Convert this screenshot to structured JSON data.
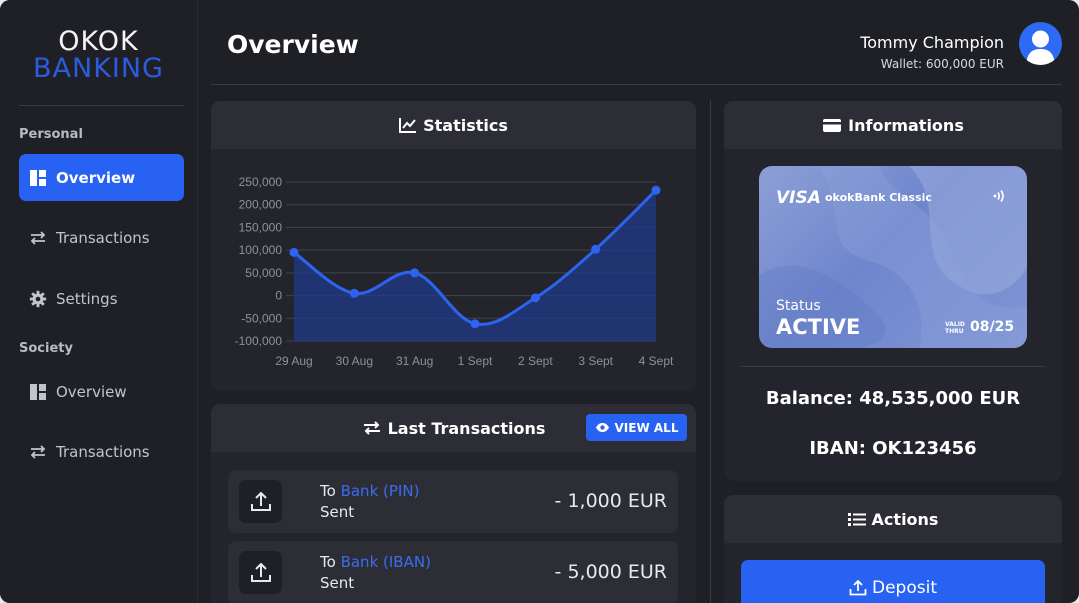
{
  "brand": {
    "line1": "OKOK",
    "line2": "BANKING"
  },
  "sidebar": {
    "personal_label": "Personal",
    "society_label": "Society",
    "personal_items": [
      {
        "label": "Overview",
        "icon": "dashboard-icon",
        "active": true
      },
      {
        "label": "Transactions",
        "icon": "transfer-icon",
        "active": false
      },
      {
        "label": "Settings",
        "icon": "gear-icon",
        "active": false
      }
    ],
    "society_items": [
      {
        "label": "Overview",
        "icon": "dashboard-icon",
        "active": false
      },
      {
        "label": "Transactions",
        "icon": "transfer-icon",
        "active": false
      }
    ]
  },
  "header": {
    "title": "Overview",
    "user_name": "Tommy Champion",
    "wallet": "Wallet: 600,000 EUR"
  },
  "statistics": {
    "title": "Statistics",
    "chart_data": {
      "type": "area",
      "categories": [
        "29 Aug",
        "30 Aug",
        "31 Aug",
        "1 Sept",
        "2 Sept",
        "3 Sept",
        "4 Sept"
      ],
      "values": [
        95000,
        5000,
        50000,
        -62000,
        -5000,
        102000,
        232000
      ],
      "ylim": [
        -100000,
        250000
      ],
      "yticks": [
        "250,000",
        "200,000",
        "150,000",
        "100,000",
        "50,000",
        "0",
        "-50,000",
        "-100,000"
      ],
      "title": "",
      "xlabel": "",
      "ylabel": "",
      "grid": true,
      "line_color": "#2d63f0",
      "fill_color": "#1f3a8a"
    }
  },
  "transactions": {
    "title": "Last Transactions",
    "view_all": "VIEW ALL",
    "items": [
      {
        "prefix": "To",
        "bank": "Bank (PIN)",
        "status": "Sent",
        "amount": "- 1,000 EUR"
      },
      {
        "prefix": "To",
        "bank": "Bank (IBAN)",
        "status": "Sent",
        "amount": "- 5,000 EUR"
      }
    ]
  },
  "informations": {
    "title": "Informations",
    "card": {
      "network": "VISA",
      "product": "okokBank Classic",
      "status_label": "Status",
      "status_value": "ACTIVE",
      "valid_thru_line1": "VALID",
      "valid_thru_line2": "THRU",
      "expiry": "08/25"
    },
    "balance": "Balance: 48,535,000 EUR",
    "iban": "IBAN: OK123456"
  },
  "actions": {
    "title": "Actions",
    "deposit": "Deposit"
  },
  "colors": {
    "accent": "#2862f2",
    "background": "#1f2026",
    "panel": "#24252c",
    "panel_head": "#2d2e35"
  }
}
